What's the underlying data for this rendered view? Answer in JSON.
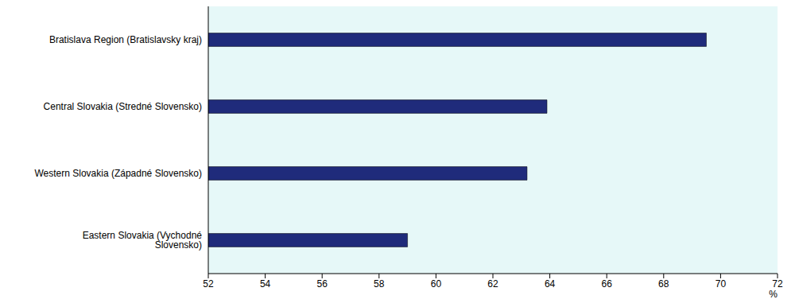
{
  "chart_data": {
    "type": "bar",
    "orientation": "horizontal",
    "categories": [
      "Bratislava Region (Bratislavsky kraj)",
      "Central Slovakia (Stredné Slovensko)",
      "Western Slovakia (Západné Slovensko)",
      "Eastern Slovakia (Vychodné Slovensko)"
    ],
    "values": [
      69.5,
      63.9,
      63.2,
      59.0
    ],
    "color": "#1f2b7b",
    "x_label": "%",
    "xlim": [
      52,
      72
    ],
    "xticks": [
      52,
      54,
      56,
      58,
      60,
      62,
      64,
      66,
      68,
      70,
      72
    ],
    "grid": false
  }
}
